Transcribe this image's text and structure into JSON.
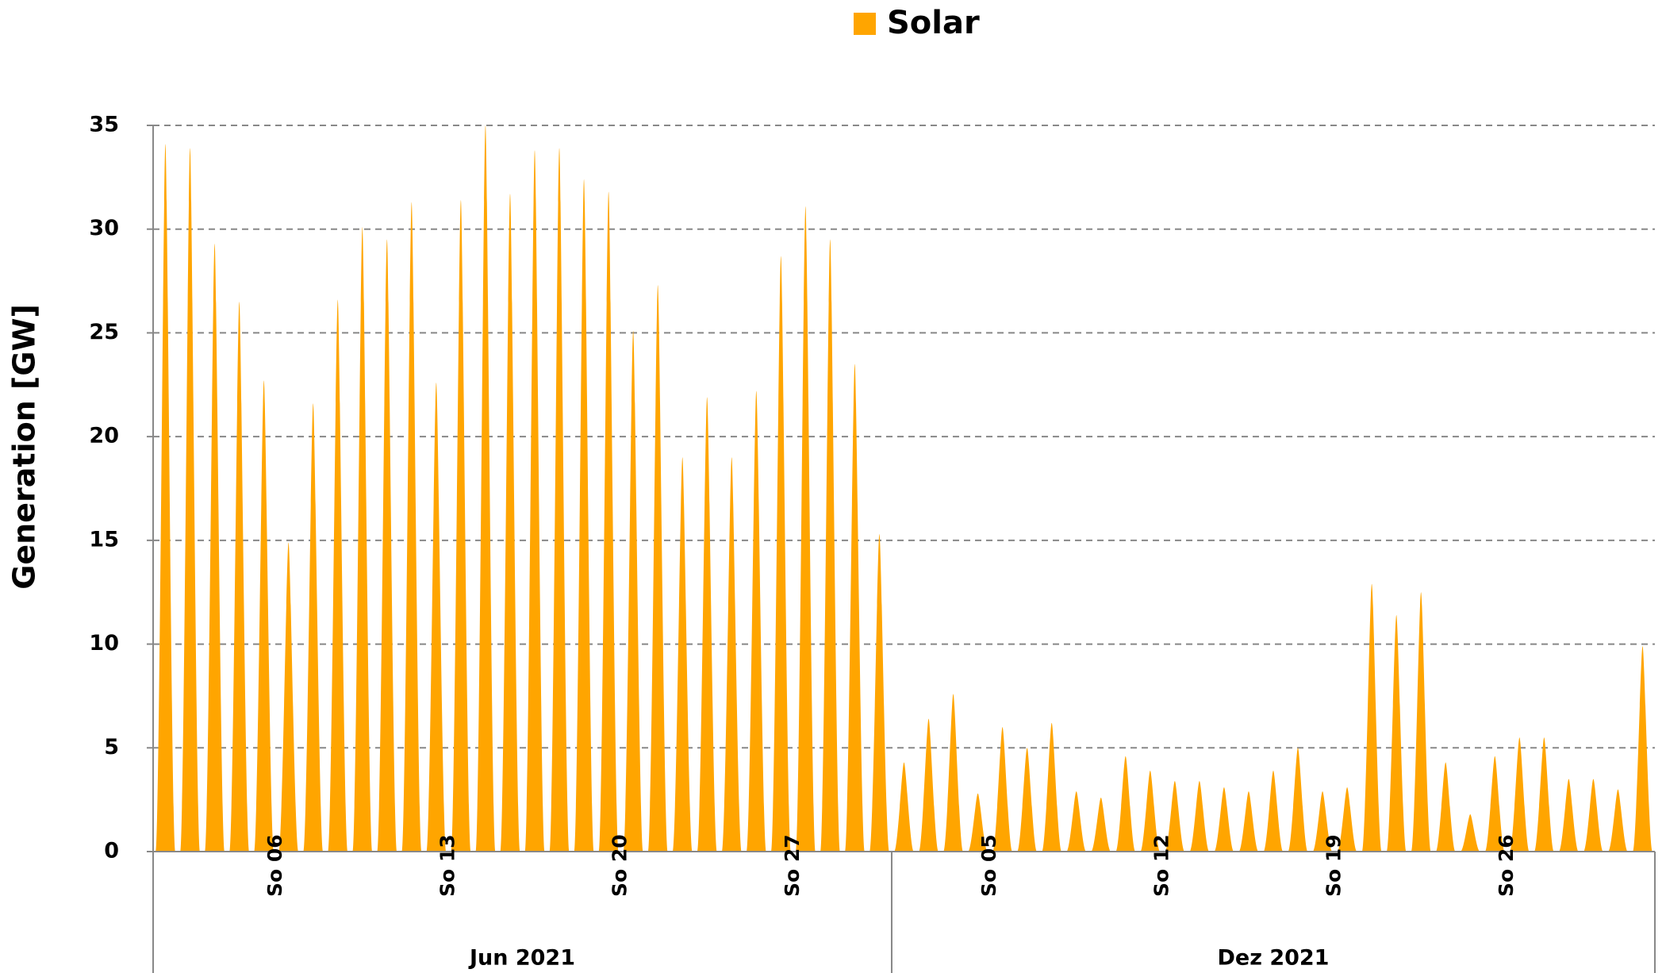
{
  "chart_data": {
    "type": "area",
    "y_label": "Generation   [GW]",
    "ylim": [
      0,
      35
    ],
    "yticks": [
      0,
      5,
      10,
      15,
      20,
      25,
      30,
      35
    ],
    "grid": true,
    "legend": "top",
    "category_groups": [
      {
        "label": "Jun 2021",
        "categories": [
          null,
          null,
          null,
          null,
          null,
          "So 06",
          null,
          null,
          null,
          null,
          null,
          null,
          "So 13",
          null,
          null,
          null,
          null,
          null,
          null,
          "So 20",
          null,
          null,
          null,
          null,
          null,
          null,
          "So 27",
          null,
          null,
          null
        ]
      },
      {
        "label": "Dez 2021",
        "categories": [
          null,
          null,
          null,
          null,
          "So 05",
          null,
          null,
          null,
          null,
          null,
          null,
          "So 12",
          null,
          null,
          null,
          null,
          null,
          null,
          "So 19",
          null,
          null,
          null,
          null,
          null,
          null,
          "So 26",
          null,
          null,
          null,
          null,
          null
        ]
      }
    ],
    "series": [
      {
        "name": "Solar",
        "color": "#FFA500",
        "values": [
          34.1,
          33.9,
          29.3,
          26.5,
          22.7,
          14.9,
          21.6,
          26.6,
          30.1,
          29.5,
          31.3,
          22.6,
          31.4,
          35,
          31.7,
          33.8,
          33.9,
          32.4,
          31.8,
          25.1,
          27.3,
          19,
          21.9,
          19,
          22.2,
          28.7,
          31.1,
          29.5,
          23.5,
          15.3,
          4.3,
          6.4,
          7.6,
          2.8,
          6.0,
          5.0,
          6.2,
          2.9,
          2.6,
          4.6,
          3.9,
          3.4,
          3.4,
          3.1,
          2.9,
          3.9,
          5.0,
          2.9,
          3.1,
          12.9,
          11.4,
          12.5,
          4.3,
          1.8,
          4.6,
          5.5,
          5.5,
          3.5,
          3.5,
          3.0,
          9.9
        ]
      }
    ]
  }
}
